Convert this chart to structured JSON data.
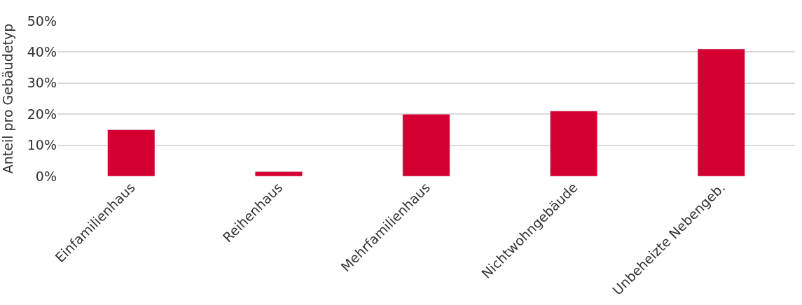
{
  "chart_data": {
    "type": "bar",
    "ylabel": "Anteil pro Gebäudetyp",
    "categories": [
      "Einfamilienhaus",
      "Reihenhaus",
      "Mehrfamilienhaus",
      "Nichtwohngebäude",
      "Unbeheizte Nebengeb."
    ],
    "values": [
      15,
      1.5,
      20,
      21,
      41
    ],
    "color": "#d50032",
    "ylim": [
      0,
      50
    ],
    "yticks": [
      {
        "value": 0,
        "label": "0%"
      },
      {
        "value": 10,
        "label": "10%"
      },
      {
        "value": 20,
        "label": "20%"
      },
      {
        "value": 30,
        "label": "30%"
      },
      {
        "value": 40,
        "label": "40%"
      },
      {
        "value": 50,
        "label": "50%"
      }
    ],
    "grid": "y"
  }
}
